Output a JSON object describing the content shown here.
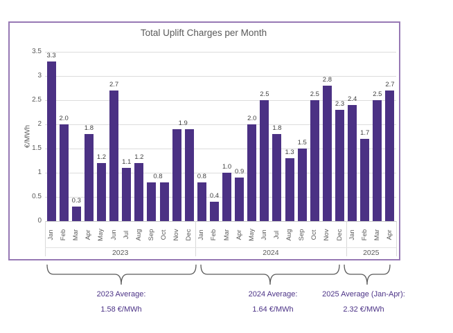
{
  "chart_data": {
    "type": "bar",
    "title": "Total Uplift Charges per Month",
    "ylabel": "€/MWh",
    "ylim": [
      0,
      3.5
    ],
    "tick_step": 0.5,
    "tick_labels": [
      "0",
      "0.5",
      "1",
      "1.5",
      "2",
      "2.5",
      "3",
      "3.5"
    ],
    "grid": "horizontal",
    "bar_color": "#4B3184",
    "groups": [
      {
        "year": "2023",
        "months": [
          "Jan",
          "Feb",
          "Mar",
          "Apr",
          "May",
          "Jun",
          "Jul",
          "Aug",
          "Sep",
          "Oct",
          "Nov",
          "Dec"
        ],
        "values": [
          3.3,
          2.0,
          0.3,
          1.8,
          1.2,
          2.7,
          1.1,
          1.2,
          0.8,
          0.8,
          1.9,
          1.9
        ],
        "labels": [
          "3.3",
          "2.0",
          "0.3",
          "1.8",
          "1.2",
          "2.7",
          "1.1",
          "1.2",
          "0.8",
          "",
          "1.9",
          ""
        ]
      },
      {
        "year": "2024",
        "months": [
          "Jan",
          "Feb",
          "Mar",
          "Apr",
          "May",
          "Jun",
          "Jul",
          "Aug",
          "Sep",
          "Oct",
          "Nov",
          "Dec"
        ],
        "values": [
          0.8,
          0.4,
          1.0,
          0.9,
          2.0,
          2.5,
          1.8,
          1.3,
          1.5,
          2.5,
          2.8,
          2.3
        ],
        "labels": [
          "0.8",
          "0.4",
          "1.0",
          "0.9",
          "2.0",
          "2.5",
          "1.8",
          "1.3",
          "1.5",
          "2.5",
          "2.8",
          "2.3"
        ]
      },
      {
        "year": "2025",
        "months": [
          "Jan",
          "Feb",
          "Mar",
          "Apr"
        ],
        "values": [
          2.4,
          1.7,
          2.5,
          2.7
        ],
        "labels": [
          "2.4",
          "1.7",
          "2.5",
          "2.7"
        ]
      }
    ]
  },
  "annotations": [
    {
      "line1": "2023 Average:",
      "line2": "1.58 €/MWh"
    },
    {
      "line1": "2024 Average:",
      "line2": "1.64 €/MWh"
    },
    {
      "line1": "2025 Average (Jan-Apr):",
      "line2": "2.32 €/MWh"
    }
  ],
  "colors": {
    "bar": "#4B3184",
    "box_border": "#9678B4",
    "gridline": "#DCDCDC",
    "axis_text": "#595959",
    "data_label_text": "#3F3F3F",
    "annotation_text": "#4B3286",
    "brace": "#595959"
  }
}
